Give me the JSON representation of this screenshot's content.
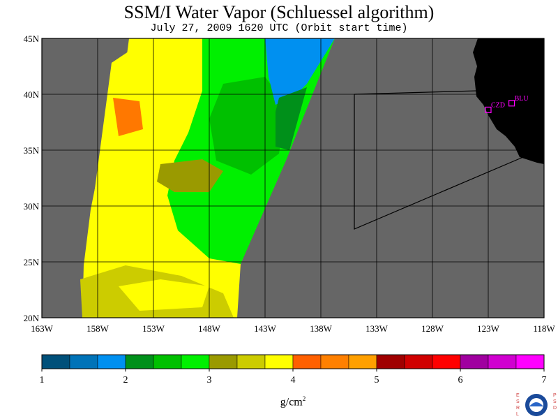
{
  "title": "SSM/I Water Vapor (Schluessel algorithm)",
  "subtitle": "July 27, 2009  1620 UTC  (Orbit start time)",
  "map": {
    "lon_range": [
      -163,
      -118
    ],
    "lat_range": [
      20,
      45
    ],
    "x_labels": [
      "163W",
      "158W",
      "153W",
      "148W",
      "143W",
      "138W",
      "133W",
      "128W",
      "123W",
      "118W"
    ],
    "y_labels": [
      "20N",
      "25N",
      "30N",
      "35N",
      "40N",
      "45N"
    ],
    "stations": [
      {
        "name": "CZD",
        "lon": -123.0,
        "lat": 38.6
      },
      {
        "name": "BLU",
        "lon": -120.9,
        "lat": 39.2
      }
    ],
    "colors": {
      "background": "#666666",
      "land": "#000000",
      "grid": "#000000",
      "station": "#ff00ff"
    }
  },
  "colorbar": {
    "ticks": [
      "1",
      "2",
      "3",
      "4",
      "5",
      "6",
      "7"
    ],
    "units": "g/cm",
    "units_sup": "2",
    "colors": [
      "#00507a",
      "#0073b8",
      "#0090f0",
      "#00901a",
      "#00c000",
      "#00f000",
      "#9a9a00",
      "#cccc00",
      "#ffff00",
      "#ff6000",
      "#ff8000",
      "#ffa000",
      "#a00000",
      "#d00000",
      "#ff0000",
      "#a000a0",
      "#d000d0",
      "#ff00ff"
    ]
  },
  "logo": {
    "left_text": "ESRL",
    "right_text": "PSD",
    "center_text": "NOAA"
  }
}
